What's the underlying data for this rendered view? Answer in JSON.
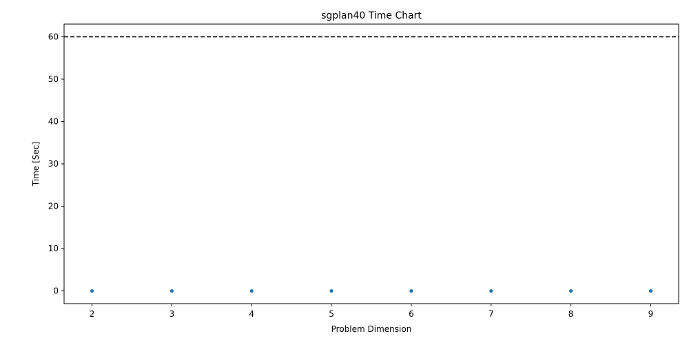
{
  "chart_data": {
    "type": "scatter",
    "title": "sgplan40 Time Chart",
    "xlabel": "Problem Dimension",
    "ylabel": "Time [Sec]",
    "xlim": [
      1.65,
      9.35
    ],
    "ylim": [
      -3,
      63
    ],
    "xticks": [
      2,
      3,
      4,
      5,
      6,
      7,
      8,
      9
    ],
    "yticks": [
      0,
      10,
      20,
      30,
      40,
      50,
      60
    ],
    "grid": false,
    "series": [
      {
        "x": [
          2,
          3,
          4,
          5,
          6,
          7,
          8,
          9
        ],
        "y": [
          0,
          0,
          0,
          0,
          0,
          0,
          0,
          0
        ],
        "color": "#1f77b4",
        "marker": "dot"
      }
    ],
    "reference_lines": [
      {
        "orientation": "horizontal",
        "y": 60,
        "style": "dashed",
        "color": "#000000"
      }
    ]
  }
}
